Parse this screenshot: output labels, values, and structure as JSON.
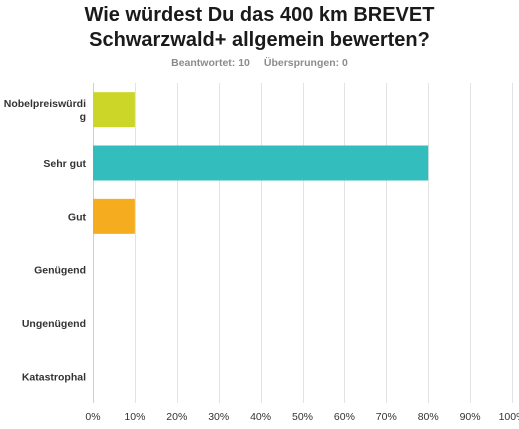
{
  "chart_data": {
    "type": "bar",
    "orientation": "horizontal",
    "title_lines": [
      "Wie würdest Du das 400 km BREVET",
      "Schwarzwald+ allgemein bewerten?"
    ],
    "stats": {
      "answered": "Beantwortet: 10",
      "skipped": "Übersprungen: 0"
    },
    "categories": [
      [
        "Nobelpreiswürdi",
        "g"
      ],
      [
        "Sehr gut"
      ],
      [
        "Gut"
      ],
      [
        "Genügend"
      ],
      [
        "Ungenügend"
      ],
      [
        "Katastrophal"
      ]
    ],
    "values": [
      10,
      80,
      10,
      0,
      0,
      0
    ],
    "colors": [
      "#cbd629",
      "#34bdbd",
      "#f5ad1f",
      "#8cc63f",
      "#e04e4e",
      "#3f8fd9"
    ],
    "xlim": [
      0,
      100
    ],
    "ticks": [
      0,
      10,
      20,
      30,
      40,
      50,
      60,
      70,
      80,
      90,
      100
    ],
    "tick_suffix": "%",
    "grid": true
  }
}
